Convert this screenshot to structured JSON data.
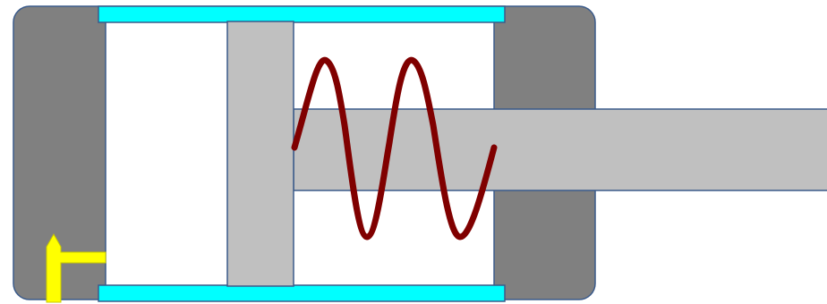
{
  "diagram": {
    "type": "spring-return pneumatic cylinder",
    "components": [
      "cylinder-end-cap-left",
      "cylinder-end-cap-right",
      "cylinder-barrel-top-wall",
      "cylinder-barrel-bottom-wall",
      "piston",
      "piston-rod",
      "return-spring",
      "air-port"
    ],
    "colors": {
      "background": "#FFFFFF",
      "end_caps": "#808080",
      "barrel_walls": "#00FFFF",
      "chamber": "#FFFFFF",
      "piston": "#C0C0C0",
      "piston_rod": "#C0C0C0",
      "spring": "#800000",
      "air_port": "#FFFF00",
      "outline": "#3A5A8A"
    }
  }
}
